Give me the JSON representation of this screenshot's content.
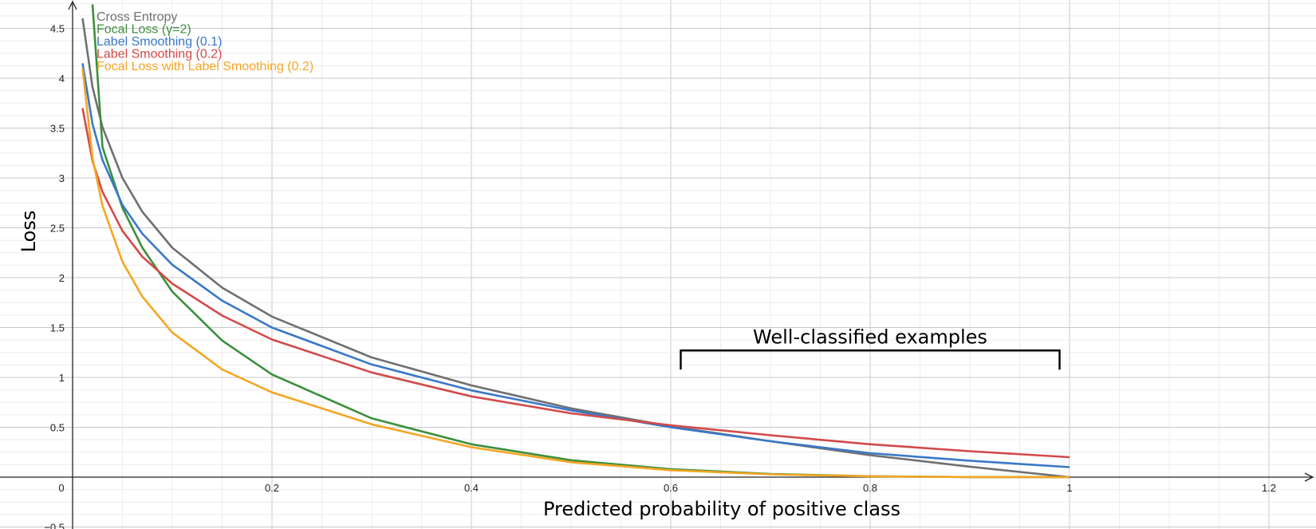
{
  "chart_data": {
    "type": "line",
    "xlabel": "Predicted probability of positive class",
    "ylabel": "Loss",
    "xlim": [
      0,
      1.25
    ],
    "ylim": [
      -0.5,
      4.75
    ],
    "x_ticks": [
      {
        "value": 0,
        "label": "0"
      },
      {
        "value": 0.2,
        "label": "0.2"
      },
      {
        "value": 0.4,
        "label": "0.4"
      },
      {
        "value": 0.6,
        "label": "0.6"
      },
      {
        "value": 0.8,
        "label": "0.8"
      },
      {
        "value": 1,
        "label": "1"
      },
      {
        "value": 1.2,
        "label": "1.2"
      }
    ],
    "y_ticks": [
      {
        "value": -0.5,
        "label": "−0.5"
      },
      {
        "value": 0.5,
        "label": "0.5"
      },
      {
        "value": 1,
        "label": "1"
      },
      {
        "value": 1.5,
        "label": "1.5"
      },
      {
        "value": 2,
        "label": "2"
      },
      {
        "value": 2.5,
        "label": "2.5"
      },
      {
        "value": 3,
        "label": "3"
      },
      {
        "value": 3.5,
        "label": "3.5"
      },
      {
        "value": 4,
        "label": "4"
      },
      {
        "value": 4.5,
        "label": "4.5"
      }
    ],
    "grid": true,
    "legend_position": "top-left",
    "series": [
      {
        "name": "Cross Entropy",
        "color": "#707070",
        "x": [
          0.01,
          0.02,
          0.03,
          0.05,
          0.07,
          0.1,
          0.15,
          0.2,
          0.3,
          0.4,
          0.5,
          0.6,
          0.7,
          0.8,
          0.9,
          1.0
        ],
        "y": [
          4.6,
          3.91,
          3.51,
          3.0,
          2.66,
          2.3,
          1.9,
          1.61,
          1.2,
          0.92,
          0.69,
          0.51,
          0.36,
          0.22,
          0.105,
          0.0
        ]
      },
      {
        "name": "Focal Loss (γ=2)",
        "color": "#3d8f3d",
        "x": [
          0.02,
          0.03,
          0.05,
          0.07,
          0.1,
          0.15,
          0.2,
          0.3,
          0.4,
          0.5,
          0.6,
          0.7,
          0.8,
          0.9,
          1.0
        ],
        "y": [
          4.74,
          3.31,
          2.7,
          2.3,
          1.86,
          1.37,
          1.03,
          0.59,
          0.33,
          0.17,
          0.08,
          0.032,
          0.009,
          0.001,
          0.0
        ]
      },
      {
        "name": "Label Smoothing (0.1)",
        "color": "#3a78c8",
        "x": [
          0.01,
          0.02,
          0.03,
          0.05,
          0.07,
          0.1,
          0.15,
          0.2,
          0.3,
          0.4,
          0.5,
          0.6,
          0.7,
          0.8,
          0.9,
          1.0
        ],
        "y": [
          4.15,
          3.54,
          3.18,
          2.73,
          2.44,
          2.13,
          1.77,
          1.5,
          1.13,
          0.87,
          0.67,
          0.5,
          0.36,
          0.24,
          0.165,
          0.1
        ]
      },
      {
        "name": "Label Smoothing (0.2)",
        "color": "#d24a4a",
        "x": [
          0.01,
          0.02,
          0.03,
          0.05,
          0.07,
          0.1,
          0.15,
          0.2,
          0.3,
          0.4,
          0.5,
          0.6,
          0.7,
          0.8,
          0.9,
          1.0
        ],
        "y": [
          3.7,
          3.17,
          2.86,
          2.47,
          2.21,
          1.94,
          1.62,
          1.38,
          1.05,
          0.81,
          0.64,
          0.52,
          0.42,
          0.33,
          0.26,
          0.2
        ]
      },
      {
        "name": "Focal Loss with Label Smoothing (0.2)",
        "color": "#f5a623",
        "x": [
          0.01,
          0.02,
          0.03,
          0.05,
          0.07,
          0.1,
          0.15,
          0.2,
          0.3,
          0.4,
          0.5,
          0.6,
          0.7,
          0.8,
          0.9,
          1.0
        ],
        "y": [
          4.1,
          3.2,
          2.72,
          2.16,
          1.81,
          1.45,
          1.08,
          0.85,
          0.53,
          0.3,
          0.15,
          0.07,
          0.028,
          0.008,
          0.001,
          0.0
        ]
      }
    ],
    "annotations": [
      {
        "text": "Well-classified examples",
        "x_start": 0.61,
        "x_end": 0.99,
        "y": 1.27
      }
    ]
  }
}
